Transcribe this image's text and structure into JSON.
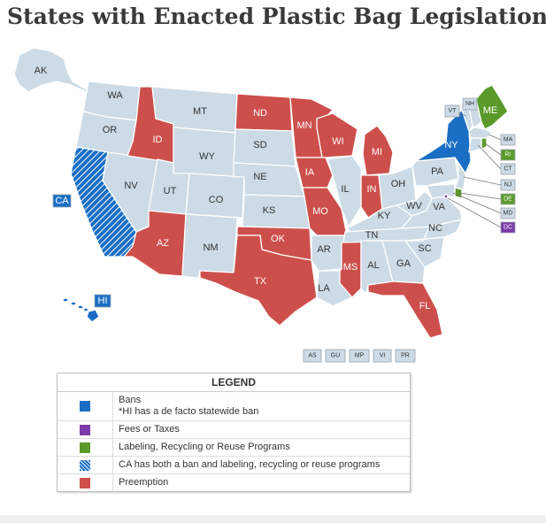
{
  "title": "States with Enacted Plastic Bag Legislation",
  "colors": {
    "none": "#ccdbe5",
    "ban": "#1a6fc4",
    "fees": "#7b3aa8",
    "labeling": "#5a9a2b",
    "preemption": "#cd4f4b",
    "pattern_stripe": "#ffffff"
  },
  "states": {
    "AK": "none",
    "HI": "ban",
    "WA": "none",
    "OR": "none",
    "CA": "ban-labeling",
    "ID": "preemption",
    "NV": "none",
    "MT": "none",
    "WY": "none",
    "UT": "none",
    "AZ": "preemption",
    "CO": "none",
    "NM": "none",
    "ND": "preemption",
    "SD": "none",
    "NE": "none",
    "KS": "none",
    "OK": "preemption",
    "TX": "preemption",
    "MN": "preemption",
    "IA": "preemption",
    "MO": "preemption",
    "AR": "none",
    "LA": "none",
    "WI": "preemption",
    "IL": "none",
    "MS": "preemption",
    "MI": "preemption",
    "IN": "preemption",
    "KY": "none",
    "TN": "none",
    "AL": "none",
    "OH": "none",
    "GA": "none",
    "FL": "preemption",
    "WV": "none",
    "VA": "none",
    "NC": "none",
    "SC": "none",
    "PA": "none",
    "NY": "ban",
    "VT": "none",
    "NH": "none",
    "ME": "labeling",
    "MA": "none",
    "RI": "labeling",
    "CT": "none",
    "NJ": "none",
    "DE": "labeling",
    "MD": "none",
    "DC": "fees"
  },
  "territories": [
    "AS",
    "GU",
    "MP",
    "VI",
    "PR"
  ],
  "legend": {
    "title": "LEGEND",
    "items": [
      {
        "key": "ban",
        "label": "Bans",
        "note": "*HI has a de facto statewide ban"
      },
      {
        "key": "fees",
        "label": "Fees or Taxes",
        "note": ""
      },
      {
        "key": "labeling",
        "label": "Labeling, Recycling or Reuse Programs",
        "note": ""
      },
      {
        "key": "ban-labeling",
        "label": "CA has both a ban and labeling, recycling or reuse programs",
        "note": ""
      },
      {
        "key": "preemption",
        "label": "Preemption",
        "note": ""
      }
    ]
  }
}
